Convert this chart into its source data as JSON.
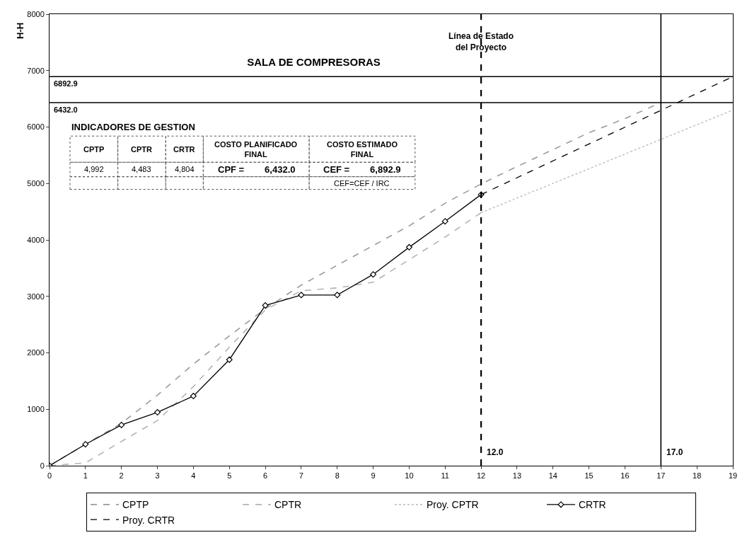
{
  "chart_data": {
    "type": "line",
    "title": "SALA DE COMPRESORAS",
    "ylabel": "H-H",
    "x": [
      0,
      1,
      2,
      3,
      4,
      5,
      6,
      7,
      8,
      9,
      10,
      11,
      12,
      13,
      14,
      15,
      16,
      17
    ],
    "series": [
      {
        "name": "CPTP",
        "color": "#9a9a9a",
        "line_style": "dashed",
        "marker": "none",
        "values": [
          0,
          380,
          750,
          1250,
          1800,
          2300,
          2780,
          3200,
          3550,
          3900,
          4250,
          4650,
          4992,
          5300,
          5600,
          5900,
          6150,
          6432
        ]
      },
      {
        "name": "CPTR",
        "color": "#b4b4b4",
        "line_style": "dashed",
        "marker": "none",
        "x": [
          0,
          1,
          2,
          3,
          4,
          5,
          6,
          7,
          8,
          9,
          10,
          11,
          12
        ],
        "values": [
          0,
          50,
          430,
          800,
          1400,
          2100,
          2760,
          3100,
          3150,
          3250,
          3650,
          4050,
          4483
        ]
      },
      {
        "name": "Proy. CPTR",
        "color": "#c4c4c4",
        "line_style": "dotted",
        "marker": "none",
        "x": [
          12,
          19
        ],
        "values": [
          4483,
          6300
        ]
      },
      {
        "name": "CRTR",
        "color": "#000000",
        "line_style": "solid",
        "marker": "diamond",
        "x": [
          0,
          1,
          2,
          3,
          4,
          5,
          6,
          7,
          8,
          9,
          10,
          11,
          12
        ],
        "values": [
          0,
          380,
          722,
          946,
          1234,
          1878,
          2839,
          3024,
          3024,
          3390,
          3870,
          4330,
          4804
        ]
      },
      {
        "name": "Proy. CRTR",
        "color": "#000000",
        "line_style": "dashed",
        "marker": "none",
        "x": [
          12,
          19
        ],
        "values": [
          4804,
          6892.9
        ]
      }
    ],
    "xlim": [
      0,
      19
    ],
    "xticks": [
      0,
      1,
      2,
      3,
      4,
      5,
      6,
      7,
      8,
      9,
      10,
      11,
      12,
      13,
      14,
      15,
      16,
      17,
      18,
      19
    ],
    "ylim": [
      0,
      8000
    ],
    "yticks": [
      0,
      1000,
      2000,
      3000,
      4000,
      5000,
      6000,
      7000,
      8000
    ],
    "legend": "bottom",
    "ref_lines": [
      {
        "axis": "x",
        "value": 12,
        "label": "12.0",
        "color": "#000000",
        "line_style": "dashed"
      },
      {
        "axis": "x",
        "value": 17,
        "label": "17.0",
        "color": "#000000",
        "line_style": "solid"
      },
      {
        "axis": "y",
        "value": 6892.9,
        "label": "6892.9",
        "color": "#000000",
        "line_style": "solid"
      },
      {
        "axis": "y",
        "value": 6432,
        "label": "6432.0",
        "color": "#000000",
        "line_style": "solid"
      }
    ],
    "annotations": [
      {
        "text": "Línea de Estado\ndel Proyecto",
        "x": 12,
        "y": 7300
      },
      "INDICADORES DE GESTION",
      "CPTP",
      "CPTR",
      "CRTR",
      "COSTO PLANIFICADO\nFINAL",
      "COSTO ESTIMADO\nFINAL",
      "4,992",
      "4,483",
      "4,804",
      "CPF =        6,432.0",
      "CEF =        6,892.9",
      "CEF=CEF / IRC"
    ]
  }
}
